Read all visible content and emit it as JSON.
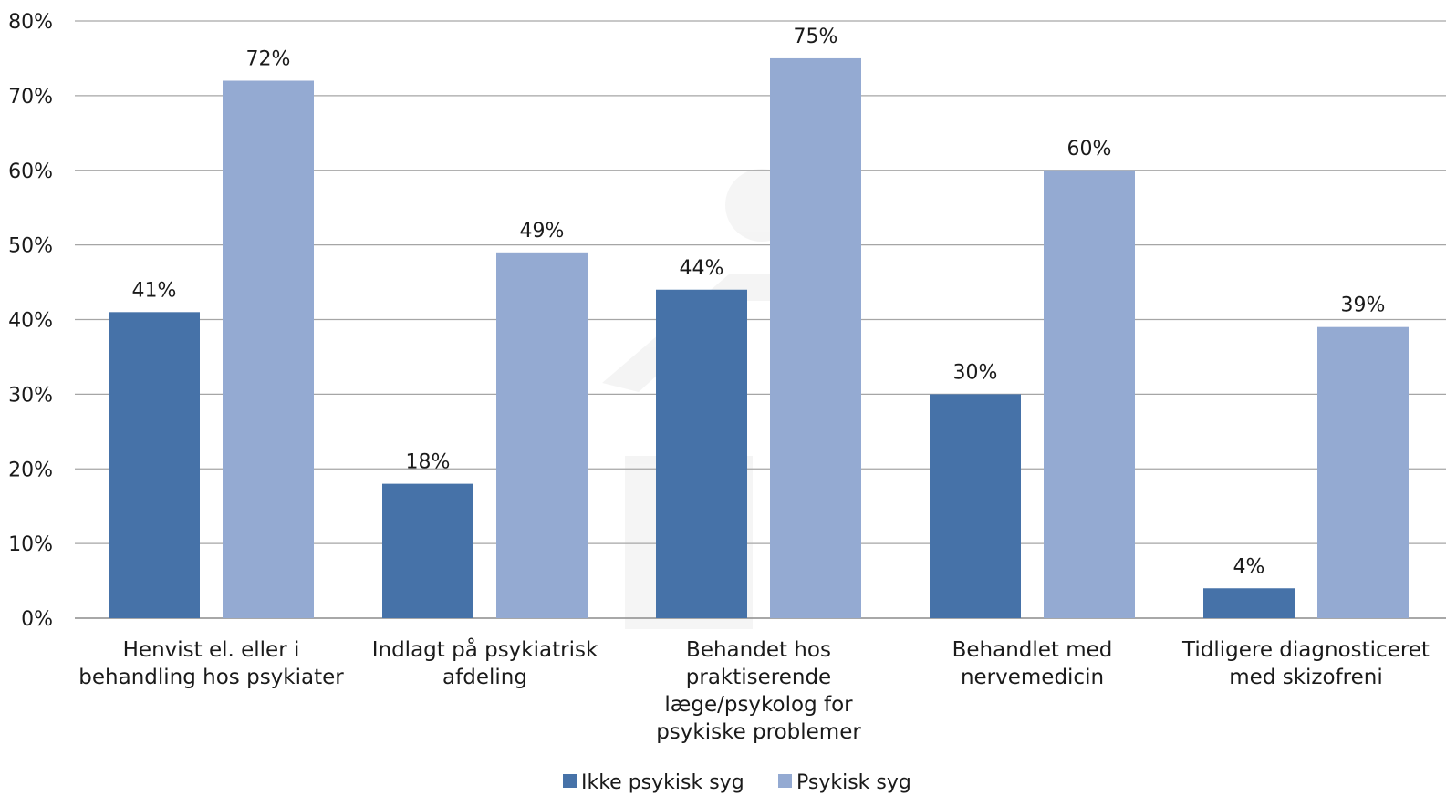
{
  "chart_data": {
    "type": "bar",
    "categories": [
      [
        "Henvist el. eller i",
        "behandling hos psykiater"
      ],
      [
        "Indlagt på psykiatrisk",
        "afdeling"
      ],
      [
        "Behandet hos",
        "praktiserende",
        "læge/psykolog for",
        "psykiske problemer"
      ],
      [
        "Behandlet med",
        "nervemedicin"
      ],
      [
        "Tidligere diagnosticeret",
        "med skizofreni"
      ]
    ],
    "series": [
      {
        "name": "Ikke psykisk syg",
        "color": "#4672a8",
        "values": [
          41,
          18,
          44,
          30,
          4
        ],
        "labels": [
          "41%",
          "18%",
          "44%",
          "30%",
          "4%"
        ]
      },
      {
        "name": "Psykisk syg",
        "color": "#94aad2",
        "values": [
          72,
          49,
          75,
          60,
          39
        ],
        "labels": [
          "72%",
          "49%",
          "75%",
          "60%",
          "39%"
        ]
      }
    ],
    "ylim": [
      0,
      80
    ],
    "yticks": [
      0,
      10,
      20,
      30,
      40,
      50,
      60,
      70,
      80
    ],
    "ytick_labels": [
      "0%",
      "10%",
      "20%",
      "30%",
      "40%",
      "50%",
      "60%",
      "70%",
      "80%"
    ],
    "grid": true,
    "legend_position": "bottom-center"
  }
}
